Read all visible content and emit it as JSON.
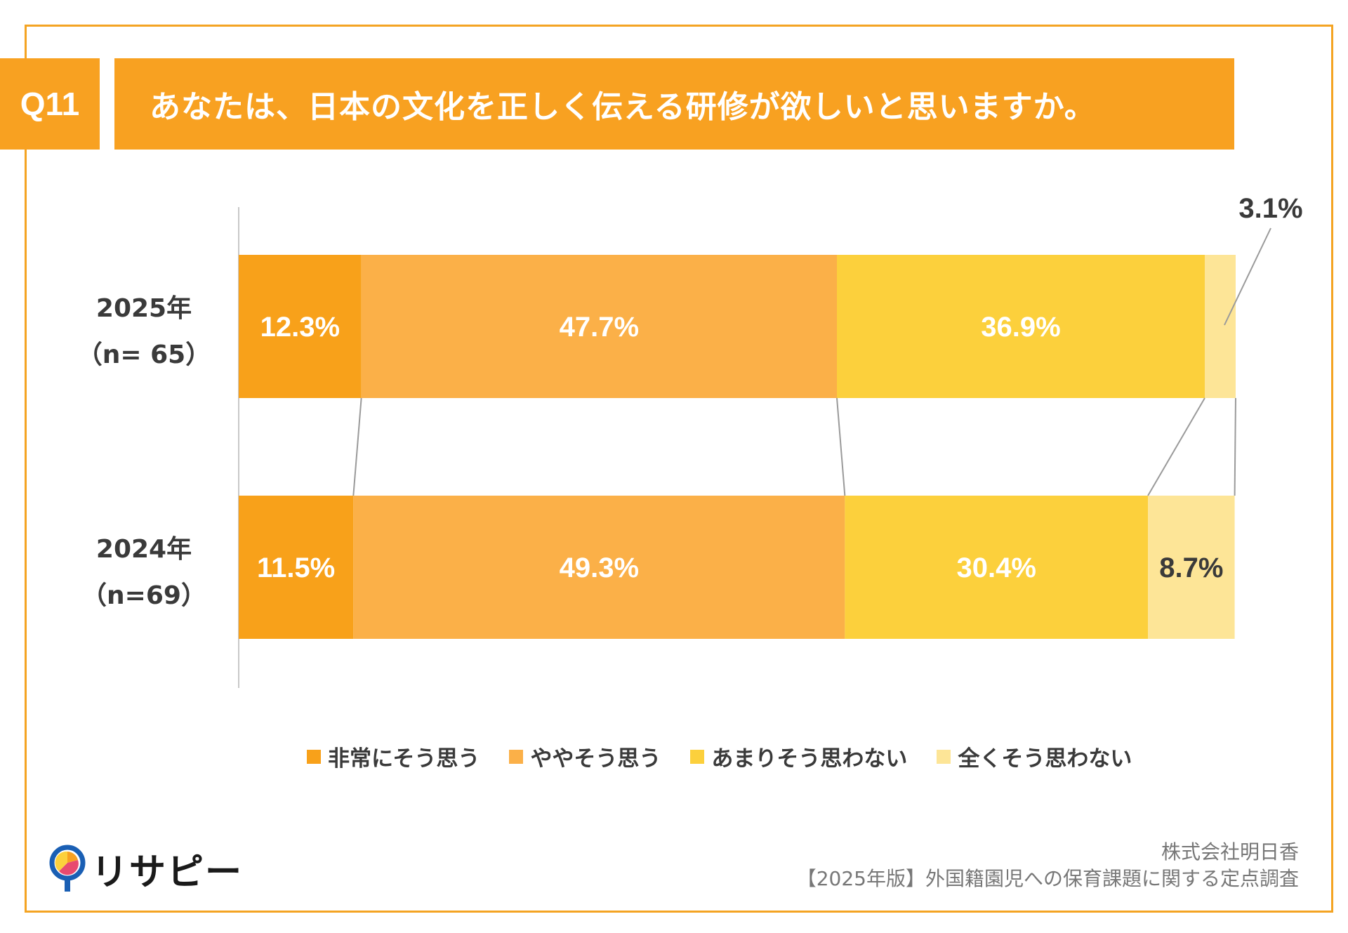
{
  "question": {
    "number": "Q11",
    "text": "あなたは、日本の文化を正しく伝える研修が欲しいと思いますか。"
  },
  "chart_data": {
    "type": "bar",
    "orientation": "horizontal",
    "stacked": true,
    "percent": true,
    "categories": [
      {
        "label": "2025年",
        "sublabel": "（n= 65）"
      },
      {
        "label": "2024年",
        "sublabel": "（n=69）"
      }
    ],
    "series": [
      {
        "name": "非常にそう思う",
        "color": "#f8a11a",
        "values": [
          12.3,
          11.5
        ],
        "labels": [
          "12.3%",
          "11.5%"
        ],
        "label_color": "#ffffff"
      },
      {
        "name": "ややそう思う",
        "color": "#fbb048",
        "values": [
          47.7,
          49.3
        ],
        "labels": [
          "47.7%",
          "49.3%"
        ],
        "label_color": "#ffffff"
      },
      {
        "name": "あまりそう思わない",
        "color": "#fcd03c",
        "values": [
          36.9,
          30.4
        ],
        "labels": [
          "36.9%",
          "30.4%"
        ],
        "label_color": "#ffffff"
      },
      {
        "name": "全くそう思わない",
        "color": "#fde597",
        "values": [
          3.1,
          8.7
        ],
        "labels": [
          "3.1%",
          "8.7%"
        ],
        "label_color": "#3a3a3a"
      }
    ],
    "xlim": [
      0,
      100
    ],
    "legend_position": "bottom",
    "grid": false,
    "connector_lines": true
  },
  "footer": {
    "logo_text": "リサピー",
    "company": "株式会社明日香",
    "survey": "【2025年版】外国籍園児への保育課題に関する定点調査"
  },
  "colors": {
    "accent": "#f8a121",
    "frame": "#f4a423"
  }
}
